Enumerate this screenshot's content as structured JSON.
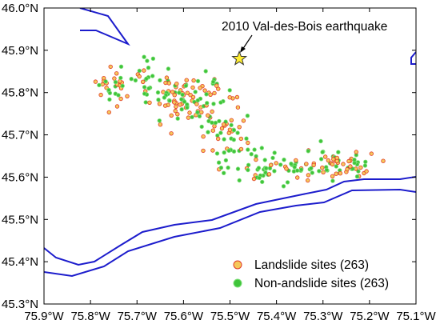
{
  "map": {
    "lon_range": [
      -75.9,
      -75.1
    ],
    "lat_range": [
      45.3,
      46.0
    ],
    "x_ticks": [
      {
        "value": -75.9,
        "label": "75.9°W"
      },
      {
        "value": -75.8,
        "label": "75.8°W"
      },
      {
        "value": -75.7,
        "label": "75.7°W"
      },
      {
        "value": -75.6,
        "label": "75.6°W"
      },
      {
        "value": -75.5,
        "label": "75.5°W"
      },
      {
        "value": -75.4,
        "label": "75.4°W"
      },
      {
        "value": -75.3,
        "label": "75.3°W"
      },
      {
        "value": -75.2,
        "label": "75.2°W"
      },
      {
        "value": -75.1,
        "label": "75.1°W"
      }
    ],
    "y_ticks": [
      {
        "value": 46.0,
        "label": "46.0°N"
      },
      {
        "value": 45.9,
        "label": "45.9°N"
      },
      {
        "value": 45.8,
        "label": "45.8°N"
      },
      {
        "value": 45.7,
        "label": "45.7°N"
      },
      {
        "value": 45.6,
        "label": "45.6°N"
      },
      {
        "value": 45.5,
        "label": "45.5°N"
      },
      {
        "value": 45.4,
        "label": "45.4°N"
      },
      {
        "value": 45.3,
        "label": "45.3°N"
      }
    ],
    "earthquake": {
      "label": "2010 Val-des-Bois earthquake",
      "lon": -75.48,
      "lat": 45.88,
      "color": "#ffee33"
    },
    "legend": [
      {
        "label": "Landslide sites (263)",
        "color": "#f5c85a",
        "edge": "#e03a2a"
      },
      {
        "label": "Non-andslide sites (263)",
        "color": "#3fc43a",
        "edge": "#7fe07a"
      }
    ],
    "river_color": "#1c1ccc"
  }
}
